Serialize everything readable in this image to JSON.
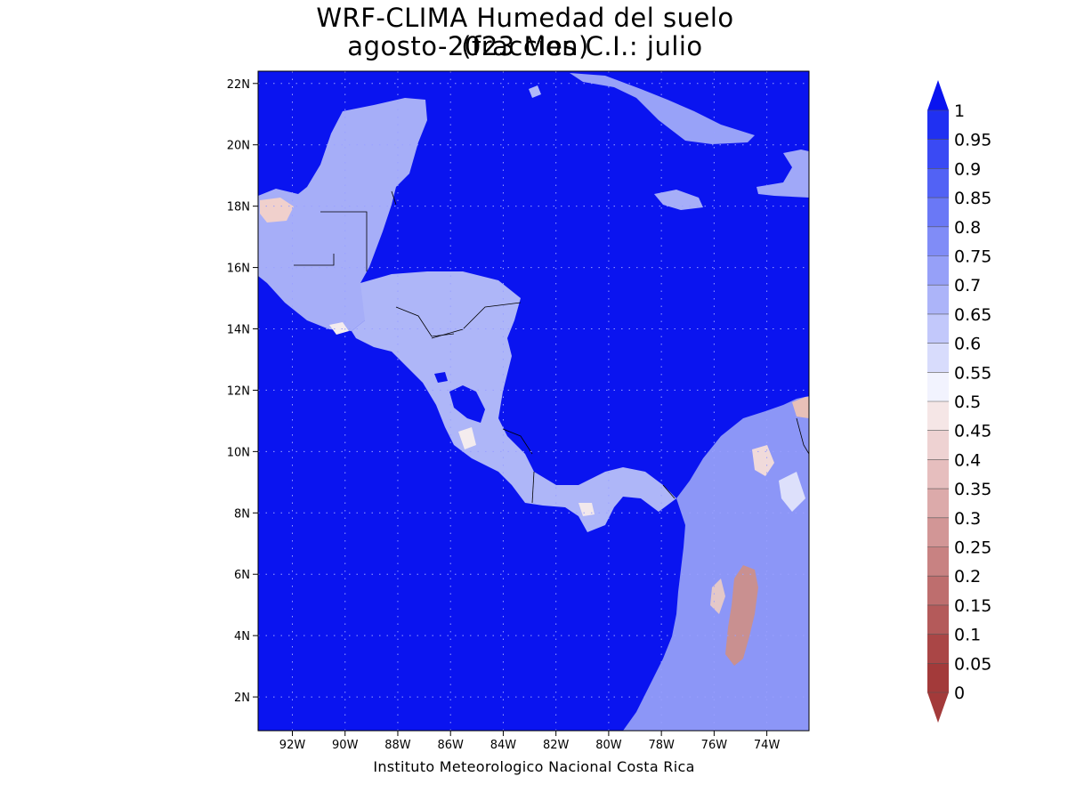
{
  "title": {
    "line1": "WRF-CLIMA Humedad del suelo (fraccion)",
    "line2": "agosto-2023 Mes C.I.: julio"
  },
  "footer": "Instituto Meteorologico Nacional Costa Rica",
  "map": {
    "lon_range": [
      -93.3,
      -72.4
    ],
    "lat_range": [
      0.9,
      22.4
    ],
    "x_ticks": [
      "92W",
      "90W",
      "88W",
      "86W",
      "84W",
      "82W",
      "80W",
      "78W",
      "76W",
      "74W"
    ],
    "x_tick_values": [
      -92,
      -90,
      -88,
      -86,
      -84,
      -82,
      -80,
      -78,
      -76,
      -74
    ],
    "y_ticks": [
      "2N",
      "4N",
      "6N",
      "8N",
      "10N",
      "12N",
      "14N",
      "16N",
      "18N",
      "20N",
      "22N"
    ],
    "y_tick_values": [
      2,
      4,
      6,
      8,
      10,
      12,
      14,
      16,
      18,
      20,
      22
    ],
    "grid": "dotted",
    "ocean_color": "#0a14f0"
  },
  "colorbar": {
    "labels": [
      "1",
      "0.95",
      "0.9",
      "0.85",
      "0.8",
      "0.75",
      "0.7",
      "0.65",
      "0.6",
      "0.55",
      "0.5",
      "0.45",
      "0.4",
      "0.35",
      "0.3",
      "0.25",
      "0.2",
      "0.15",
      "0.1",
      "0.05",
      "0"
    ],
    "colors": [
      "#0a14f0",
      "#2030f2",
      "#3a4af4",
      "#5262f5",
      "#6a78f6",
      "#808cf7",
      "#96a0f8",
      "#acb4f9",
      "#c2c8fb",
      "#d8dcfc",
      "#f2f3fe",
      "#f5e6e6",
      "#eed2d2",
      "#e6bebe",
      "#dcaaaa",
      "#d29696",
      "#c88282",
      "#be6e6e",
      "#b45a5a",
      "#aa4646",
      "#a33a3a"
    ]
  }
}
